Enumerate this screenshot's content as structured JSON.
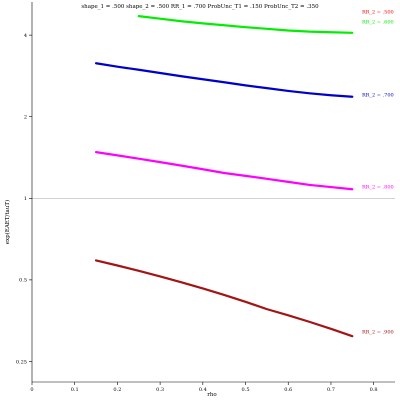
{
  "chart_data": {
    "type": "line",
    "title": "shape_1 = .500  shape_2 = .500  RR_1 = .700  ProbUnc_T1 = .150  ProbUnc_T2 = .350",
    "xlabel": "rho",
    "ylabel": "exp(EAET/tauT)",
    "xlim": [
      0,
      0.85
    ],
    "ylim": [
      0.21,
      5.3
    ],
    "y_scale": "log",
    "x_ticks": [
      0,
      0.1,
      0.2,
      0.3,
      0.4,
      0.5,
      0.6,
      0.7,
      0.8
    ],
    "x_tick_labels": [
      "0",
      "0.1",
      "0.2",
      "0.3",
      "0.4",
      "0.5",
      "0.6",
      "0.7",
      "0.8"
    ],
    "y_ticks": [
      0.25,
      0.5,
      1,
      2,
      4
    ],
    "y_tick_labels": [
      "0.25",
      "0.5",
      "1",
      "2",
      "4"
    ],
    "reference_line_y": 1,
    "series": [
      {
        "label": "RR_2 = .500",
        "color": "#ff0000",
        "x": [],
        "y": []
      },
      {
        "label": "RR_2 = .600",
        "color": "#00ee00",
        "x": [
          0.25,
          0.3,
          0.35,
          0.4,
          0.45,
          0.5,
          0.55,
          0.6,
          0.65,
          0.7,
          0.75
        ],
        "y": [
          4.7,
          4.6,
          4.5,
          4.42,
          4.35,
          4.28,
          4.22,
          4.16,
          4.12,
          4.1,
          4.08
        ]
      },
      {
        "label": "RR_2 = .700",
        "color": "#0000cc",
        "x": [
          0.15,
          0.2,
          0.25,
          0.3,
          0.35,
          0.4,
          0.45,
          0.5,
          0.55,
          0.6,
          0.65,
          0.7,
          0.75
        ],
        "y": [
          3.15,
          3.06,
          2.98,
          2.9,
          2.82,
          2.75,
          2.68,
          2.61,
          2.55,
          2.49,
          2.44,
          2.4,
          2.37
        ]
      },
      {
        "label": "RR_2 = .800",
        "color": "#ff00ff",
        "x": [
          0.15,
          0.2,
          0.25,
          0.3,
          0.35,
          0.4,
          0.45,
          0.5,
          0.55,
          0.6,
          0.65,
          0.7,
          0.75
        ],
        "y": [
          1.48,
          1.44,
          1.4,
          1.36,
          1.32,
          1.28,
          1.24,
          1.21,
          1.18,
          1.15,
          1.12,
          1.1,
          1.08
        ]
      },
      {
        "label": "RR_2 = .900",
        "color": "#a31515",
        "x": [
          0.15,
          0.2,
          0.25,
          0.3,
          0.35,
          0.4,
          0.45,
          0.5,
          0.55,
          0.6,
          0.65,
          0.7,
          0.75
        ],
        "y": [
          0.59,
          0.565,
          0.54,
          0.515,
          0.49,
          0.465,
          0.44,
          0.415,
          0.39,
          0.37,
          0.35,
          0.33,
          0.31
        ]
      }
    ]
  }
}
